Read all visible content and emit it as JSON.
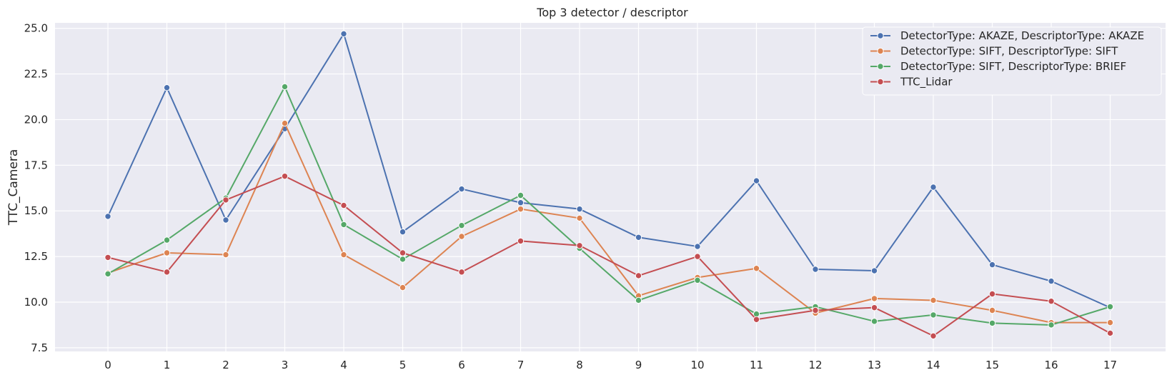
{
  "chart_data": {
    "type": "line",
    "title": "Top 3 detector / descriptor",
    "xlabel": "",
    "ylabel": "TTC_Camera",
    "x": [
      0,
      1,
      2,
      3,
      4,
      5,
      6,
      7,
      8,
      9,
      10,
      11,
      12,
      13,
      14,
      15,
      16,
      17
    ],
    "xticks": [
      "0",
      "1",
      "2",
      "3",
      "4",
      "5",
      "6",
      "7",
      "8",
      "9",
      "10",
      "11",
      "12",
      "13",
      "14",
      "15",
      "16",
      "17"
    ],
    "ylim": [
      7.3,
      25.3
    ],
    "yticks": [
      7.5,
      10.0,
      12.5,
      15.0,
      17.5,
      20.0,
      22.5,
      25.0
    ],
    "ytick_labels": [
      "7.5",
      "10.0",
      "12.5",
      "15.0",
      "17.5",
      "20.0",
      "22.5",
      "25.0"
    ],
    "grid": true,
    "legend_position": "top-right",
    "series": [
      {
        "name": "DetectorType: AKAZE, DescriptorType: AKAZE",
        "color": "#4c72b0",
        "values": [
          14.7,
          21.75,
          14.5,
          19.5,
          24.7,
          13.85,
          16.2,
          15.45,
          15.1,
          13.55,
          13.05,
          16.65,
          11.8,
          11.72,
          16.3,
          12.05,
          11.15,
          9.7
        ]
      },
      {
        "name": "DetectorType: SIFT, DescriptorType: SIFT",
        "color": "#dd8452",
        "values": [
          11.6,
          12.7,
          12.6,
          19.8,
          12.6,
          10.8,
          13.6,
          15.1,
          14.6,
          10.35,
          11.35,
          11.85,
          9.4,
          10.2,
          10.1,
          9.55,
          8.88,
          8.88
        ]
      },
      {
        "name": "DetectorType: SIFT, DescriptorType: BRIEF",
        "color": "#55a868",
        "values": [
          11.55,
          13.4,
          15.7,
          21.8,
          14.25,
          12.35,
          14.2,
          15.85,
          12.95,
          10.1,
          11.2,
          9.35,
          9.75,
          8.95,
          9.3,
          8.85,
          8.75,
          9.75
        ]
      },
      {
        "name": "TTC_Lidar",
        "color": "#c44e52",
        "values": [
          12.45,
          11.65,
          15.6,
          16.9,
          15.3,
          12.7,
          11.65,
          13.35,
          13.1,
          11.45,
          12.5,
          9.05,
          9.55,
          9.7,
          8.15,
          10.45,
          10.05,
          8.3
        ]
      }
    ]
  }
}
